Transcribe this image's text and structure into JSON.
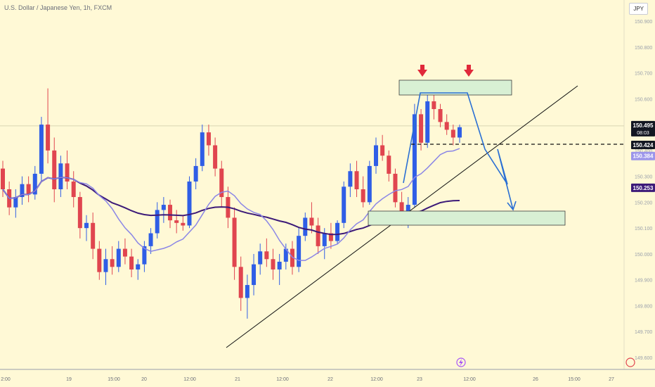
{
  "header": {
    "title": "U.S. Dollar / Japanese Yen, 1h, FXCM",
    "currency_button": "JPY"
  },
  "colors": {
    "background": "#fff9d6",
    "up_candle": "#2f5ee6",
    "down_candle": "#e0454f",
    "ma_fast": "#8b86e6",
    "ma_slow": "#3c1a78",
    "zone_fill": "#d8f0d4",
    "zone_stroke": "#3b3b3b",
    "projection": "#2a6fd4",
    "arrow_marker": "#e0293a"
  },
  "chart_data": {
    "type": "candlestick",
    "title": "U.S. Dollar / Japanese Yen, 1h, FXCM",
    "y_axis": {
      "range": [
        149.6,
        150.95
      ],
      "ticks": [
        "150.900",
        "150.800",
        "150.700",
        "150.600",
        "150.500",
        "150.400",
        "150.300",
        "150.200",
        "150.100",
        "150.000",
        "149.900",
        "149.800",
        "149.700",
        "149.600"
      ]
    },
    "x_axis": {
      "ticks": [
        "2:00",
        "19",
        "15:00",
        "20",
        "12:00",
        "21",
        "12:00",
        "22",
        "12:00",
        "23",
        "12:00",
        "26",
        "15:00",
        "27"
      ]
    },
    "price_labels": [
      {
        "name": "last",
        "value": "150.495",
        "countdown": "08:03",
        "bg": "#131722",
        "color": "#ffffff"
      },
      {
        "name": "level",
        "value": "150.424",
        "bg": "#131722",
        "color": "#ffffff"
      },
      {
        "name": "ma-fast",
        "value": "150.384",
        "bg": "#9c95ea",
        "color": "#ffffff"
      },
      {
        "name": "ma-slow",
        "value": "150.253",
        "bg": "#3c1a78",
        "color": "#ffffff"
      }
    ],
    "candles_ohlc": [
      [
        150.33,
        150.36,
        150.22,
        150.25
      ],
      [
        150.25,
        150.28,
        150.15,
        150.18
      ],
      [
        150.18,
        150.25,
        150.14,
        150.22
      ],
      [
        150.22,
        150.3,
        150.19,
        150.27
      ],
      [
        150.27,
        150.3,
        150.2,
        150.23
      ],
      [
        150.23,
        150.34,
        150.21,
        150.31
      ],
      [
        150.31,
        150.53,
        150.28,
        150.5
      ],
      [
        150.5,
        150.64,
        150.35,
        150.4
      ],
      [
        150.4,
        150.45,
        150.2,
        150.25
      ],
      [
        150.25,
        150.38,
        150.22,
        150.35
      ],
      [
        150.35,
        150.4,
        150.25,
        150.28
      ],
      [
        150.28,
        150.32,
        150.18,
        150.22
      ],
      [
        150.22,
        150.24,
        150.06,
        150.1
      ],
      [
        150.1,
        150.15,
        150.05,
        150.12
      ],
      [
        150.12,
        150.16,
        149.98,
        150.02
      ],
      [
        150.02,
        150.05,
        149.9,
        149.93
      ],
      [
        149.93,
        150.02,
        149.88,
        149.98
      ],
      [
        149.98,
        150.03,
        149.92,
        149.95
      ],
      [
        149.95,
        150.05,
        149.93,
        150.02
      ],
      [
        150.02,
        150.06,
        149.96,
        149.99
      ],
      [
        149.99,
        150.02,
        149.91,
        149.94
      ],
      [
        149.94,
        149.98,
        149.9,
        149.96
      ],
      [
        149.96,
        150.05,
        149.93,
        150.03
      ],
      [
        150.03,
        150.1,
        150.0,
        150.08
      ],
      [
        150.08,
        150.2,
        150.06,
        150.17
      ],
      [
        150.17,
        150.22,
        150.12,
        150.19
      ],
      [
        150.19,
        150.21,
        150.1,
        150.13
      ],
      [
        150.13,
        150.17,
        150.08,
        150.12
      ],
      [
        150.12,
        150.15,
        150.09,
        150.11
      ],
      [
        150.11,
        150.3,
        150.1,
        150.28
      ],
      [
        150.28,
        150.37,
        150.25,
        150.34
      ],
      [
        150.34,
        150.5,
        150.32,
        150.47
      ],
      [
        150.47,
        150.5,
        150.38,
        150.42
      ],
      [
        150.42,
        150.45,
        150.3,
        150.33
      ],
      [
        150.33,
        150.36,
        150.18,
        150.22
      ],
      [
        150.22,
        150.26,
        150.1,
        150.14
      ],
      [
        150.14,
        150.18,
        149.9,
        149.95
      ],
      [
        149.95,
        149.99,
        149.78,
        149.83
      ],
      [
        149.83,
        149.92,
        149.75,
        149.88
      ],
      [
        149.88,
        150.0,
        149.84,
        149.96
      ],
      [
        149.96,
        150.04,
        149.92,
        150.01
      ],
      [
        150.01,
        150.06,
        149.95,
        149.98
      ],
      [
        149.98,
        150.02,
        149.9,
        149.94
      ],
      [
        149.94,
        150.0,
        149.88,
        149.97
      ],
      [
        149.97,
        150.04,
        149.94,
        150.02
      ],
      [
        150.02,
        150.05,
        149.92,
        149.95
      ],
      [
        149.95,
        150.1,
        149.93,
        150.07
      ],
      [
        150.07,
        150.16,
        150.05,
        150.14
      ],
      [
        150.14,
        150.2,
        150.08,
        150.11
      ],
      [
        150.11,
        150.14,
        150.0,
        150.03
      ],
      [
        150.03,
        150.1,
        149.98,
        150.08
      ],
      [
        150.08,
        150.12,
        150.02,
        150.05
      ],
      [
        150.05,
        150.13,
        150.04,
        150.12
      ],
      [
        150.12,
        150.28,
        150.1,
        150.26
      ],
      [
        150.26,
        150.35,
        150.22,
        150.32
      ],
      [
        150.32,
        150.36,
        150.22,
        150.25
      ],
      [
        150.25,
        150.3,
        150.18,
        150.2
      ],
      [
        150.2,
        150.36,
        150.19,
        150.34
      ],
      [
        150.34,
        150.45,
        150.31,
        150.42
      ],
      [
        150.42,
        150.46,
        150.36,
        150.38
      ],
      [
        150.38,
        150.4,
        150.28,
        150.31
      ],
      [
        150.31,
        150.33,
        150.18,
        150.2
      ],
      [
        150.2,
        150.24,
        150.11,
        150.14
      ],
      [
        150.14,
        150.22,
        150.1,
        150.19
      ],
      [
        150.19,
        150.58,
        150.18,
        150.54
      ],
      [
        150.54,
        150.56,
        150.4,
        150.43
      ],
      [
        150.43,
        150.62,
        150.41,
        150.59
      ],
      [
        150.59,
        150.63,
        150.52,
        150.56
      ],
      [
        150.56,
        150.58,
        150.49,
        150.51
      ],
      [
        150.51,
        150.54,
        150.46,
        150.48
      ],
      [
        150.48,
        150.5,
        150.42,
        150.45
      ],
      [
        150.45,
        150.5,
        150.43,
        150.49
      ]
    ]
  }
}
